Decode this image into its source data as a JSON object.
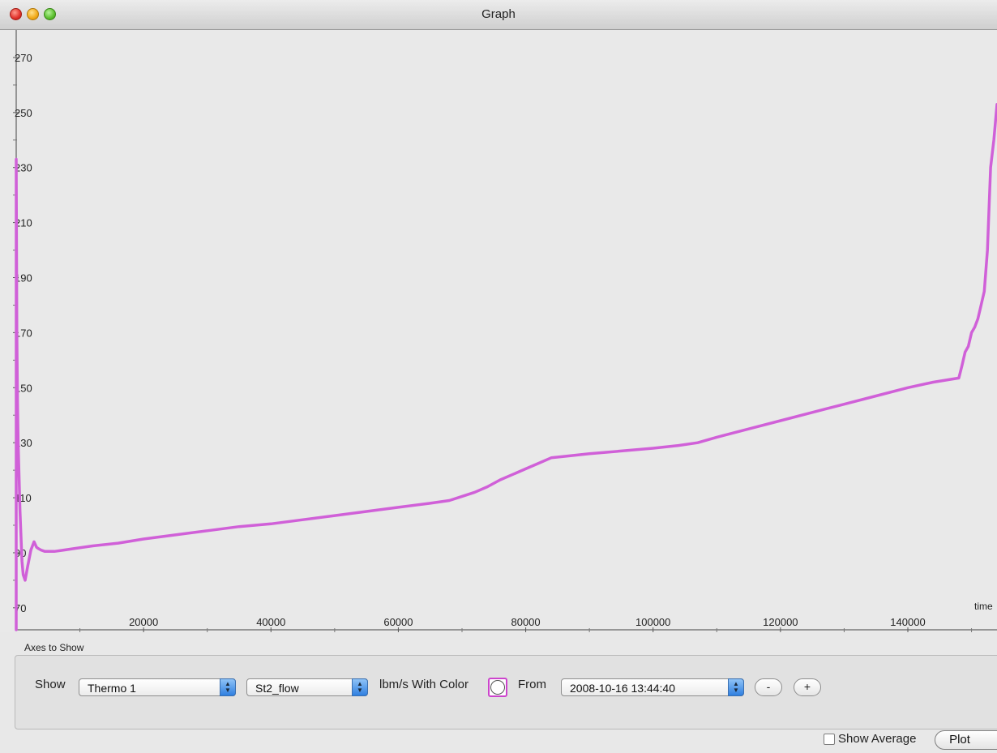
{
  "window": {
    "title": "Graph"
  },
  "chart_data": {
    "type": "line",
    "xlabel": "time",
    "ylabel": "",
    "xlim": [
      0,
      154000
    ],
    "ylim": [
      62,
      280
    ],
    "x_ticks": [
      20000,
      40000,
      60000,
      80000,
      100000,
      120000,
      140000
    ],
    "y_ticks": [
      270,
      250,
      230,
      210,
      190,
      170,
      150,
      130,
      110,
      90,
      70
    ],
    "y_minor_ticks": [
      260,
      240,
      220,
      200,
      180,
      160,
      140,
      120,
      100,
      80
    ],
    "x_minor_ticks": [
      10000,
      30000,
      50000,
      70000,
      90000,
      110000,
      130000,
      150000
    ],
    "grid": false,
    "series": [
      {
        "color": "#d060d8",
        "x": [
          0,
          0,
          100,
          200,
          300,
          450,
          600,
          750,
          900,
          1100,
          1400,
          1800,
          2300,
          2800,
          3200,
          3500,
          3900,
          4500,
          6000,
          7500,
          9000,
          12000,
          16000,
          20000,
          25000,
          30000,
          35000,
          40000,
          45000,
          50000,
          55000,
          60000,
          65000,
          68000,
          70000,
          72000,
          74000,
          76000,
          78000,
          80000,
          82000,
          84000,
          86000,
          90000,
          95000,
          100000,
          104000,
          107000,
          110000,
          115000,
          120000,
          125000,
          130000,
          135000,
          140000,
          144000,
          148000,
          148500,
          149000,
          149500,
          150000,
          150500,
          151000,
          151500,
          152000,
          152500,
          153000,
          153500,
          154000
        ],
        "values": [
          62,
          233,
          170,
          145,
          130,
          118,
          105,
          96,
          87,
          82,
          80,
          85,
          91,
          94,
          92,
          91.5,
          91,
          90.5,
          90.5,
          91,
          91.5,
          92.5,
          93.5,
          95,
          96.5,
          98,
          99.5,
          100.5,
          102,
          103.5,
          105,
          106.5,
          108,
          109,
          110.5,
          112,
          114,
          116.5,
          118.5,
          120.5,
          122.5,
          124.5,
          125,
          126,
          127,
          128,
          129,
          130,
          132,
          135,
          138,
          141,
          144,
          147,
          150,
          152,
          153.5,
          158,
          163,
          165,
          170,
          172,
          175,
          180,
          185,
          200,
          230,
          240,
          253
        ]
      }
    ]
  },
  "axes_panel": {
    "label": "Axes to Show",
    "show_label": "Show",
    "source_select": "Thermo 1",
    "channel_select": "St2_flow",
    "units_label": "lbm/s With Color",
    "from_label": "From",
    "date_select": "2008-10-16 13:44:40",
    "minus_label": "-",
    "plus_label": "+"
  },
  "footer": {
    "show_average_label": "Show Average",
    "plot_label": "Plot"
  },
  "colors": {
    "series": "#d060d8"
  }
}
